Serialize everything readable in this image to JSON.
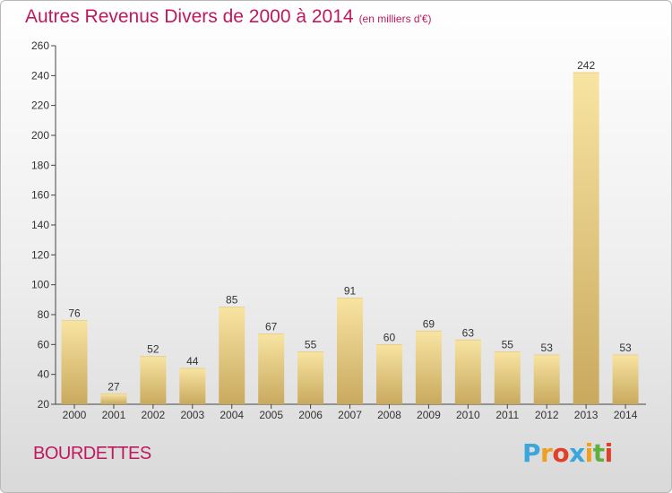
{
  "chart_title": "Autres Revenus Divers de 2000 à 2014",
  "chart_unit": "(en milliers d'€)",
  "location_name": "BOURDETTES",
  "logo": {
    "letters": [
      "P",
      "r",
      "o",
      "x",
      "i",
      "t",
      "i"
    ],
    "colors": [
      "#3aa6dc",
      "#f0a020",
      "#e0402a",
      "#3aa6dc",
      "#f0a020",
      "#60b040",
      "#e0402a"
    ]
  },
  "colors": {
    "title": "#c0185f",
    "bar_light": "#f8e4a2",
    "bar_dark": "#c9a95e",
    "axis": "#444444"
  },
  "chart_data": {
    "type": "bar",
    "categories": [
      "2000",
      "2001",
      "2002",
      "2003",
      "2004",
      "2005",
      "2006",
      "2007",
      "2008",
      "2009",
      "2010",
      "2011",
      "2012",
      "2013",
      "2014"
    ],
    "values": [
      76,
      27,
      52,
      44,
      85,
      67,
      55,
      91,
      60,
      69,
      63,
      55,
      53,
      242,
      53
    ],
    "ylim": [
      20,
      260
    ],
    "yticks": [
      20,
      40,
      60,
      80,
      100,
      120,
      140,
      160,
      180,
      200,
      220,
      240,
      260
    ],
    "grid": false,
    "data_labels": true
  }
}
